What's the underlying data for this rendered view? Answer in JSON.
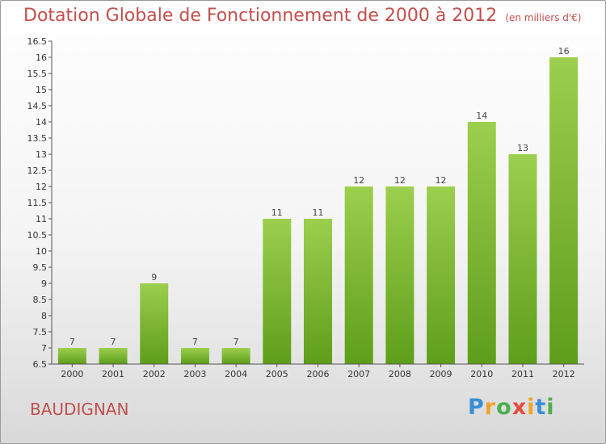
{
  "header": {
    "title": "Dotation Globale de Fonctionnement de 2000 à 2012",
    "unit": "(en milliers d'€)"
  },
  "commune": "BAUDIGNAN",
  "logo": {
    "text": "Proxiti",
    "letters": [
      {
        "ch": "P",
        "color": "#3b8fd4"
      },
      {
        "ch": "r",
        "color": "#f2a32b"
      },
      {
        "ch": "o",
        "color": "#4caf50"
      },
      {
        "ch": "x",
        "color": "#e74c3c"
      },
      {
        "ch": "i",
        "color": "#f2a32b"
      },
      {
        "ch": "t",
        "color": "#3b8fd4"
      },
      {
        "ch": "i",
        "color": "#4caf50"
      }
    ]
  },
  "chart_data": {
    "type": "bar",
    "title": "Dotation Globale de Fonctionnement de 2000 à 2012",
    "subtitle": "(en milliers d'€)",
    "categories": [
      "2000",
      "2001",
      "2002",
      "2003",
      "2004",
      "2005",
      "2006",
      "2007",
      "2008",
      "2009",
      "2010",
      "2011",
      "2012"
    ],
    "values": [
      7,
      7,
      9,
      7,
      7,
      11,
      11,
      12,
      12,
      12,
      14,
      13,
      16
    ],
    "data_labels": [
      "7",
      "7",
      "9",
      "7",
      "7",
      "11",
      "11",
      "12",
      "12",
      "12",
      "14",
      "13",
      "16"
    ],
    "ylim": [
      6.5,
      16.5
    ],
    "yticks": [
      "6.5",
      "7",
      "7.5",
      "8",
      "8.5",
      "9",
      "9.5",
      "10",
      "10.5",
      "11",
      "11.5",
      "12",
      "12.5",
      "13",
      "13.5",
      "14",
      "14.5",
      "15",
      "15.5",
      "16",
      "16.5"
    ],
    "xlabel": "",
    "ylabel": "",
    "grid": false,
    "legend": "none",
    "bar_color_top": "#9ccf4e",
    "bar_color_bottom": "#5e9e1a"
  }
}
